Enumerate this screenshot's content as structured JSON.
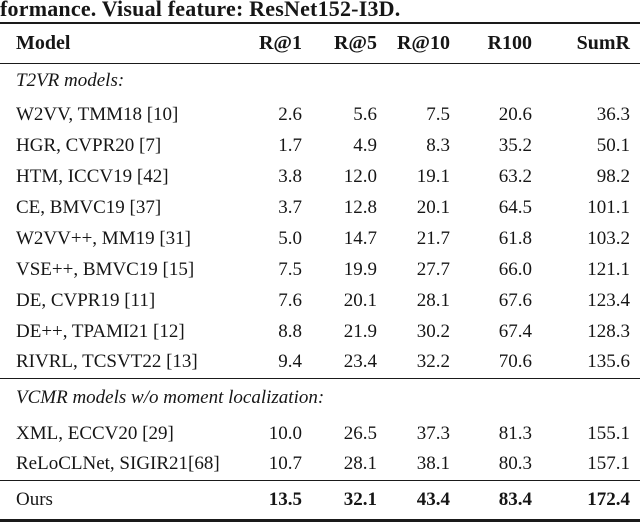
{
  "caption": "formance. Visual feature: ResNet152-I3D.",
  "table": {
    "columns": [
      "Model",
      "R@1",
      "R@5",
      "R@10",
      "R100",
      "SumR"
    ],
    "sections": [
      {
        "label": "T2VR models:",
        "rows": [
          {
            "model": "W2VV, TMM18 [10]",
            "values": [
              "2.6",
              "5.6",
              "7.5",
              "20.6",
              "36.3"
            ]
          },
          {
            "model": "HGR, CVPR20 [7]",
            "values": [
              "1.7",
              "4.9",
              "8.3",
              "35.2",
              "50.1"
            ]
          },
          {
            "model": "HTM, ICCV19 [42]",
            "values": [
              "3.8",
              "12.0",
              "19.1",
              "63.2",
              "98.2"
            ]
          },
          {
            "model": "CE, BMVC19 [37]",
            "values": [
              "3.7",
              "12.8",
              "20.1",
              "64.5",
              "101.1"
            ]
          },
          {
            "model": "W2VV++, MM19 [31]",
            "values": [
              "5.0",
              "14.7",
              "21.7",
              "61.8",
              "103.2"
            ]
          },
          {
            "model": "VSE++, BMVC19 [15]",
            "values": [
              "7.5",
              "19.9",
              "27.7",
              "66.0",
              "121.1"
            ]
          },
          {
            "model": "DE, CVPR19 [11]",
            "values": [
              "7.6",
              "20.1",
              "28.1",
              "67.6",
              "123.4"
            ]
          },
          {
            "model": "DE++, TPAMI21 [12]",
            "values": [
              "8.8",
              "21.9",
              "30.2",
              "67.4",
              "128.3"
            ]
          },
          {
            "model": "RIVRL, TCSVT22 [13]",
            "values": [
              "9.4",
              "23.4",
              "32.2",
              "70.6",
              "135.6"
            ]
          }
        ]
      },
      {
        "label": "VCMR models w/o moment localization:",
        "rows": [
          {
            "model": "XML, ECCV20 [29]",
            "values": [
              "10.0",
              "26.5",
              "37.3",
              "81.3",
              "155.1"
            ]
          },
          {
            "model": "ReLoCLNet, SIGIR21[68]",
            "values": [
              "10.7",
              "28.1",
              "38.1",
              "80.3",
              "157.1"
            ]
          }
        ]
      }
    ],
    "ours": {
      "model": "Ours",
      "values": [
        "13.5",
        "32.1",
        "43.4",
        "83.4",
        "172.4"
      ]
    }
  }
}
